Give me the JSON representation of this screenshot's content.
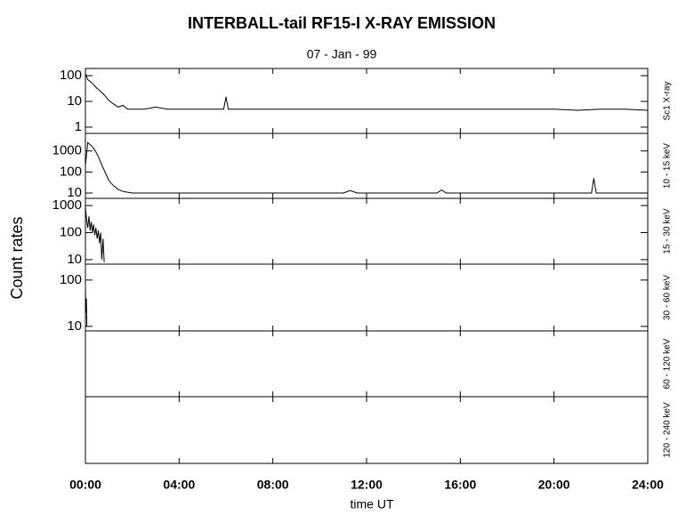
{
  "chart_data": [
    {
      "type": "line",
      "title": "INTERBALL-tail  RF15-I   X-RAY  EMISSION",
      "subtitle": "07 - Jan - 99",
      "ylabel": "Count  rates",
      "xlim": [
        0,
        24
      ],
      "ylim": [
        0.57,
        190
      ],
      "yscale": "log",
      "yticks": [
        1,
        10,
        100
      ],
      "x": [
        0,
        0.1,
        0.2,
        0.3,
        0.4,
        0.5,
        0.6,
        0.7,
        0.8,
        0.9,
        1.0,
        1.2,
        1.4,
        1.6,
        1.8,
        2.0,
        2.5,
        3,
        3.5,
        4,
        4.5,
        5,
        5.5,
        5.9,
        6,
        6.1,
        6.5,
        7,
        8,
        9,
        10,
        11,
        12,
        13,
        14,
        15,
        16,
        17,
        18,
        19,
        20,
        21,
        22,
        23,
        24
      ],
      "series": [
        {
          "name": "Sc1  X-ray",
          "color": "#000000",
          "values": [
            120,
            70,
            60,
            50,
            40,
            32,
            27,
            22,
            18,
            14,
            11,
            8,
            6,
            7,
            5,
            5,
            5,
            6,
            5,
            5,
            5,
            5,
            5,
            5,
            15,
            5,
            5,
            5,
            5,
            5,
            5,
            5,
            5,
            5,
            5,
            5,
            5,
            5,
            5,
            5,
            5,
            4.5,
            5,
            5,
            4.5
          ]
        }
      ]
    },
    {
      "type": "line",
      "xlim": [
        0,
        24
      ],
      "ylim": [
        5.6,
        6800
      ],
      "yscale": "log",
      "yticks": [
        10,
        100,
        1000
      ],
      "x": [
        0,
        0.1,
        0.2,
        0.3,
        0.4,
        0.5,
        0.6,
        0.7,
        0.8,
        0.9,
        1.0,
        1.2,
        1.4,
        1.6,
        1.8,
        2.0,
        3,
        4,
        5,
        6,
        7,
        8,
        9,
        10,
        11,
        11.3,
        11.6,
        12,
        13,
        14,
        15,
        15.2,
        15.4,
        16,
        17,
        18,
        19,
        20,
        21,
        21.6,
        21.7,
        21.8,
        22,
        23,
        24
      ],
      "series": [
        {
          "name": "10 - 15  keV",
          "color": "#000000",
          "values": [
            200,
            2500,
            2000,
            1600,
            1100,
            700,
            400,
            220,
            120,
            70,
            40,
            22,
            15,
            12,
            11,
            10,
            10,
            10,
            10,
            10,
            10,
            10,
            10,
            10,
            10,
            13,
            10,
            10,
            10,
            10,
            10,
            14,
            10,
            10,
            10,
            10,
            10,
            10,
            10,
            10,
            50,
            10,
            10,
            10,
            10
          ]
        }
      ]
    },
    {
      "type": "line",
      "xlim": [
        0,
        24
      ],
      "ylim": [
        6.8,
        1850
      ],
      "yscale": "log",
      "yticks": [
        10,
        100,
        1000
      ],
      "x": [
        0,
        0.05,
        0.1,
        0.15,
        0.2,
        0.25,
        0.3,
        0.35,
        0.4,
        0.45,
        0.5,
        0.55,
        0.6,
        0.65,
        0.7,
        0.75,
        0.8
      ],
      "series": [
        {
          "name": "15 - 30  keV",
          "color": "#000000",
          "values": [
            900,
            300,
            150,
            400,
            120,
            250,
            100,
            200,
            80,
            150,
            60,
            120,
            40,
            100,
            10,
            60,
            8
          ]
        }
      ]
    },
    {
      "type": "line",
      "xlim": [
        0,
        24
      ],
      "ylim": [
        8,
        220
      ],
      "yscale": "log",
      "yticks": [
        10,
        100
      ],
      "x": [
        0,
        0.02,
        0.04,
        0.06
      ],
      "series": [
        {
          "name": "30 - 60  keV",
          "color": "#000000",
          "values": [
            60,
            20,
            40,
            10
          ]
        }
      ]
    },
    {
      "type": "line",
      "xlim": [
        0,
        24
      ],
      "yscale": "log",
      "yticks": [],
      "x": [],
      "series": [
        {
          "name": "60 - 120  keV",
          "color": "#000000",
          "values": []
        }
      ]
    },
    {
      "type": "line",
      "xlim": [
        0,
        24
      ],
      "yscale": "log",
      "yticks": [],
      "x": [],
      "xlabel": "time UT",
      "xticks": [
        {
          "value": 0,
          "label": "00:00"
        },
        {
          "value": 4,
          "label": "04:00"
        },
        {
          "value": 8,
          "label": "08:00"
        },
        {
          "value": 12,
          "label": "12:00"
        },
        {
          "value": 16,
          "label": "16:00"
        },
        {
          "value": 20,
          "label": "20:00"
        },
        {
          "value": 24,
          "label": "24:00"
        }
      ],
      "series": [
        {
          "name": "120 - 240  keV",
          "color": "#000000",
          "values": []
        }
      ]
    }
  ]
}
